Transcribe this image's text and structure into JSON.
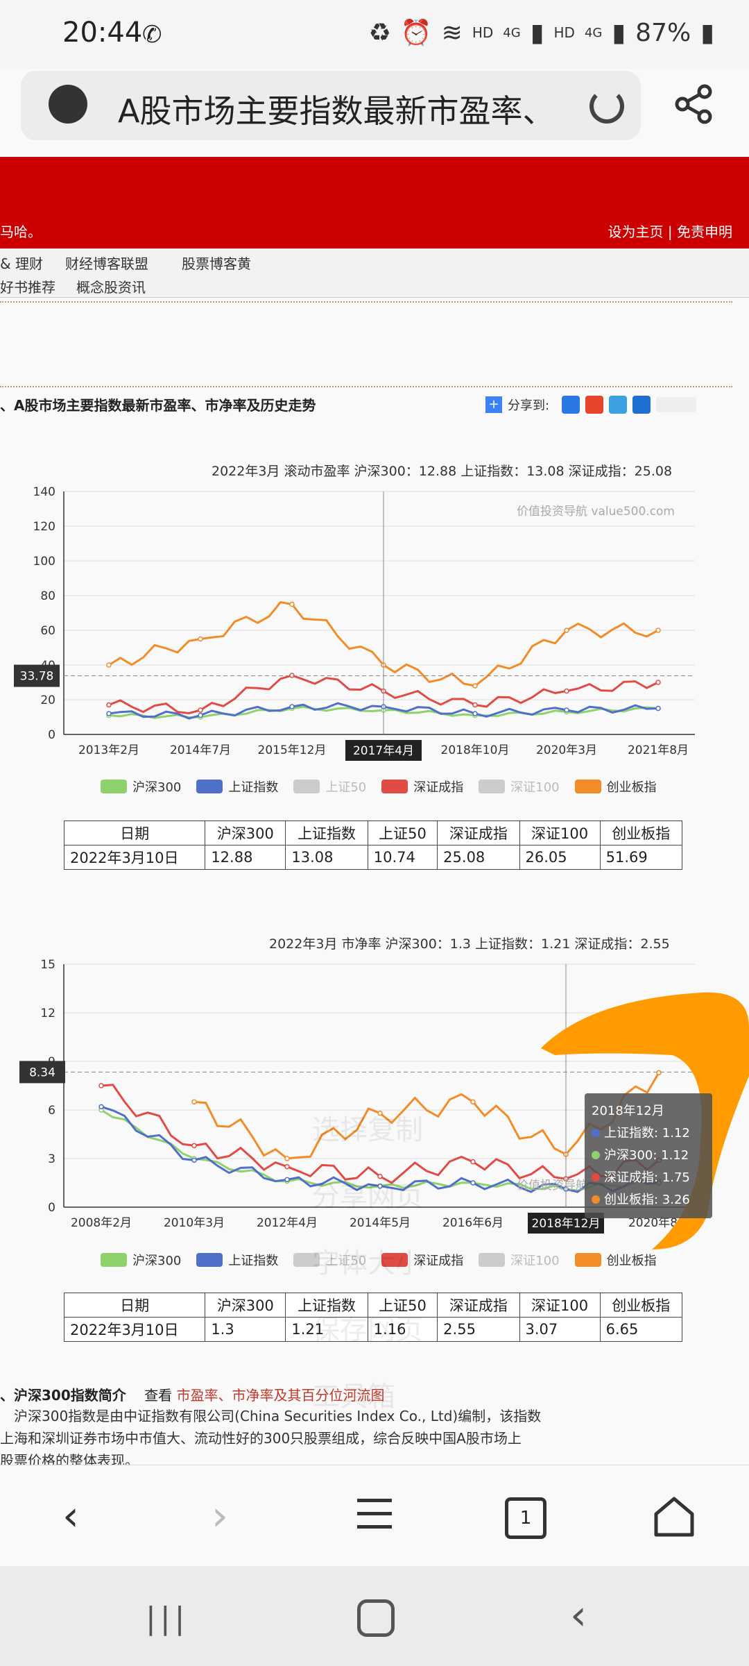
{
  "status": {
    "time": "20:44",
    "battery": "87%",
    "net1": "HD",
    "net2": "4G",
    "net3": "HD",
    "net4": "4G"
  },
  "browser": {
    "url_title": "A股市场主要指数最新市盈率、",
    "tab_count": "1"
  },
  "site": {
    "header_left": "马哈。",
    "header_right": "设为主页 | 免责申明",
    "nav1": [
      "& 理财",
      "财经博客联盟",
      "股票博客黄"
    ],
    "nav2": [
      "好书推荐",
      "概念股资讯"
    ]
  },
  "section1": {
    "title": "、A股市场主要指数最新市盈率、市净率及历史走势",
    "share_label": "分享到:"
  },
  "chart1": {
    "header": "2022年3月   滚动市盈率   沪深300：12.88   上证指数：13.08   深证成指：25.08",
    "watermark": "价值投资导航 value500.com",
    "cursor_label": "2017年4月",
    "crosshair_value": "33.78",
    "y_ticks": [
      "0",
      "20",
      "40",
      "60",
      "80",
      "100",
      "120",
      "140"
    ],
    "x_ticks": [
      "2013年2月",
      "2014年7月",
      "2015年12月",
      "2017年4月",
      "2018年10月",
      "2020年3月",
      "2021年8月"
    ]
  },
  "chart2": {
    "header": "2022年3月   市净率   沪深300：1.3   上证指数：1.21   深证成指：2.55",
    "cursor_label": "2018年12月",
    "crosshair_value": "8.34",
    "y_ticks": [
      "0",
      "3",
      "6",
      "9",
      "12",
      "15"
    ],
    "x_ticks": [
      "2008年2月",
      "2010年3月",
      "2012年4月",
      "2014年5月",
      "2016年6月",
      "2018年12月",
      "2020年8月"
    ],
    "tooltip": {
      "title": "2018年12月",
      "rows": [
        "上证指数: 1.12",
        "沪深300: 1.12",
        "深证成指: 1.75",
        "创业板指: 3.26"
      ]
    },
    "watermark": "价值投资导航"
  },
  "legend": [
    "沪深300",
    "上证指数",
    "上证50",
    "深证成指",
    "深证100",
    "创业板指"
  ],
  "table1": {
    "headers": [
      "日期",
      "沪深300",
      "上证指数",
      "上证50",
      "深证成指",
      "深证100",
      "创业板指"
    ],
    "row": [
      "2022年3月10日",
      "12.88",
      "13.08",
      "10.74",
      "25.08",
      "26.05",
      "51.69"
    ]
  },
  "table2": {
    "headers": [
      "日期",
      "沪深300",
      "上证指数",
      "上证50",
      "深证成指",
      "深证100",
      "创业板指"
    ],
    "row": [
      "2022年3月10日",
      "1.3",
      "1.21",
      "1.16",
      "2.55",
      "3.07",
      "6.65"
    ]
  },
  "section2": {
    "title": "、沪深300指数简介",
    "view_label": "查看",
    "link": "市盈率、市净率及其百分位河流图",
    "line1": "沪深300指数是由中证指数有限公司(China Securities Index Co., Ltd)编制，该指数",
    "line2": "上海和深圳证券市场中市值大、流动性好的300只股票组成，综合反映中国A股市场上",
    "line3": "股票价格的整体表现。"
  },
  "overlay_menu": [
    "选择复制",
    "分享网页",
    "字体大小",
    "保存网页",
    "工具箱"
  ],
  "colors": {
    "hs300": "#8fd16b",
    "sh": "#4f6fc9",
    "sz50": "#cccccc",
    "szcz": "#e04b45",
    "sz100": "#cccccc",
    "cyb": "#f28c28",
    "red": "#cc0000"
  },
  "chart_data": [
    {
      "type": "line",
      "title": "滚动市盈率",
      "ylim": [
        0,
        140
      ],
      "x": [
        "2013年2月",
        "2014年7月",
        "2015年12月",
        "2017年4月",
        "2018年10月",
        "2020年3月",
        "2021年8月"
      ],
      "series": [
        {
          "name": "沪深300",
          "values": [
            11,
            10,
            15,
            14,
            11,
            13,
            15
          ]
        },
        {
          "name": "上证指数",
          "values": [
            12,
            11,
            16,
            16,
            12,
            14,
            15
          ]
        },
        {
          "name": "深证成指",
          "values": [
            17,
            14,
            34,
            25,
            17,
            25,
            30
          ]
        },
        {
          "name": "创业板指",
          "values": [
            40,
            55,
            75,
            40,
            28,
            60,
            60
          ]
        }
      ]
    },
    {
      "type": "line",
      "title": "市净率",
      "ylim": [
        0,
        15
      ],
      "x": [
        "2008年2月",
        "2010年3月",
        "2012年4月",
        "2014年5月",
        "2016年6月",
        "2018年12月",
        "2020年8月"
      ],
      "series": [
        {
          "name": "沪深300",
          "values": [
            6,
            3,
            1.6,
            1.3,
            1.5,
            1.12,
            1.6
          ]
        },
        {
          "name": "上证指数",
          "values": [
            6.2,
            2.9,
            1.7,
            1.3,
            1.5,
            1.12,
            1.5
          ]
        },
        {
          "name": "深证成指",
          "values": [
            7.5,
            3.8,
            2.5,
            1.9,
            2.8,
            1.75,
            2.9
          ]
        },
        {
          "name": "创业板指",
          "values": [
            null,
            6.5,
            3,
            5.8,
            6.5,
            3.26,
            8.3
          ]
        }
      ]
    }
  ]
}
